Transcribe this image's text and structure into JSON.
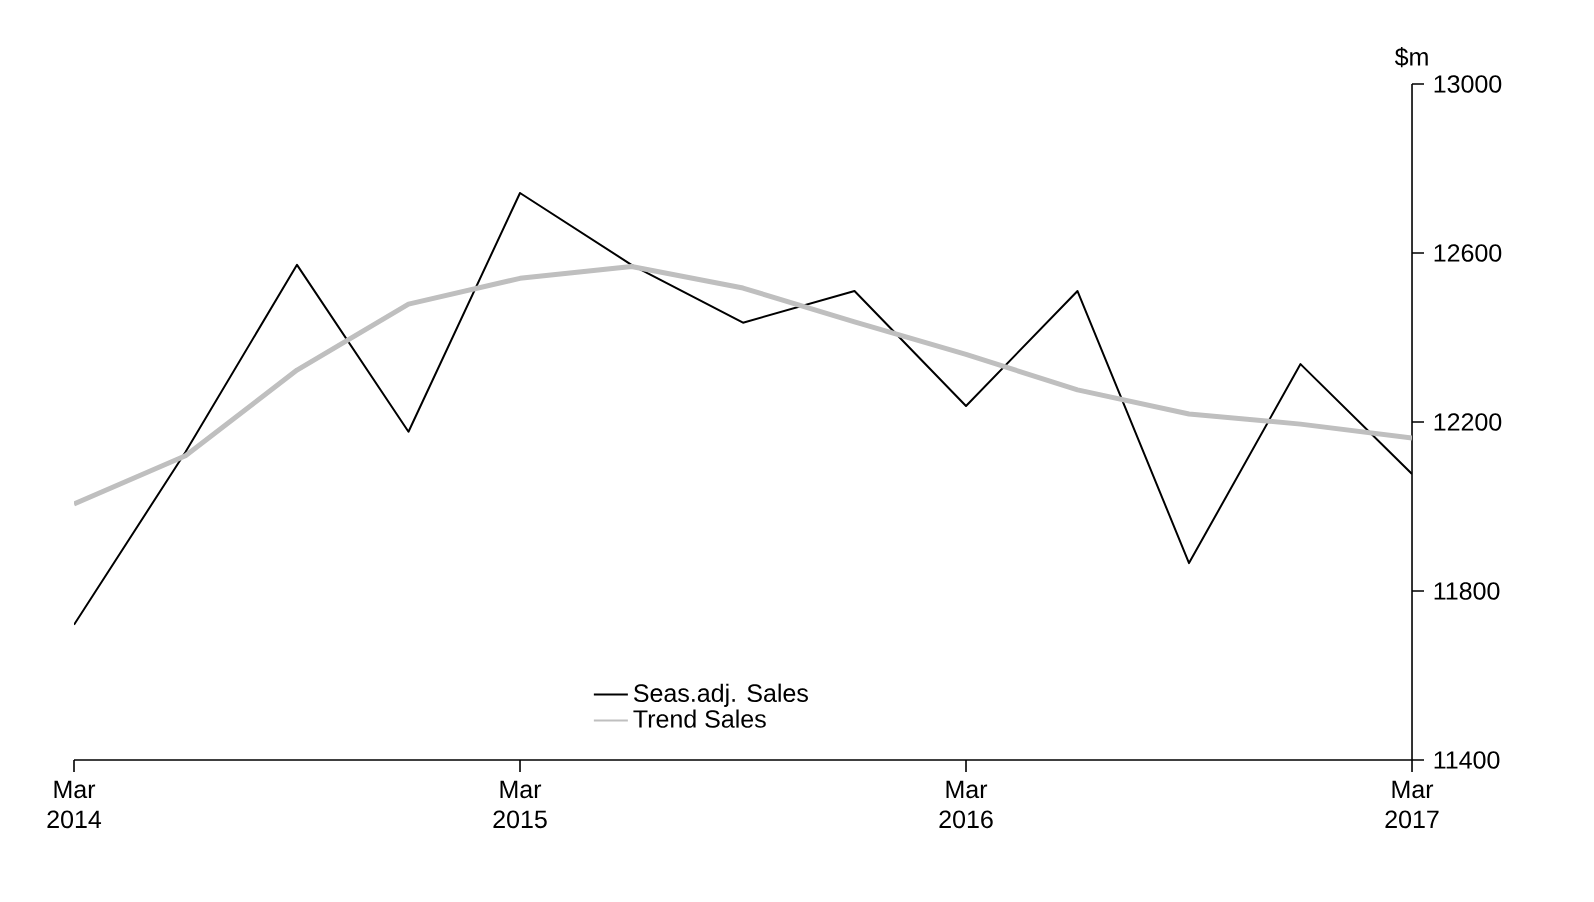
{
  "chart_data": {
    "type": "line",
    "ylabel": "$m",
    "x": [
      "2014-03",
      "2014-06",
      "2014-09",
      "2014-12",
      "2015-03",
      "2015-06",
      "2015-09",
      "2015-12",
      "2016-03",
      "2016-06",
      "2016-09",
      "2016-12",
      "2017-03"
    ],
    "series": [
      {
        "name": "Seas.adj. Sales",
        "color": "#000000",
        "values": [
          11720,
          12129,
          12572,
          12177,
          12742,
          12572,
          12435,
          12510,
          12238,
          12510,
          11866,
          12337,
          12077
        ]
      },
      {
        "name": "Trend Sales",
        "color": "#bfbfbf",
        "values": [
          12006,
          12120,
          12323,
          12479,
          12540,
          12568,
          12517,
          12437,
          12360,
          12276,
          12219,
          12195,
          12162
        ]
      }
    ],
    "xlim": [
      "2014-03",
      "2017-03"
    ],
    "xticks": [
      {
        "value": "2014-03",
        "label": "Mar 2014"
      },
      {
        "value": "2015-03",
        "label": "Mar 2015"
      },
      {
        "value": "2016-03",
        "label": "Mar 2016"
      },
      {
        "value": "2017-03",
        "label": "Mar 2017"
      }
    ],
    "ylim": [
      11400,
      13000
    ],
    "yticks": [
      11400,
      11800,
      12200,
      12600,
      13000
    ],
    "grid": false,
    "legend": "bottom",
    "marker": "none",
    "line_style": "solid"
  }
}
